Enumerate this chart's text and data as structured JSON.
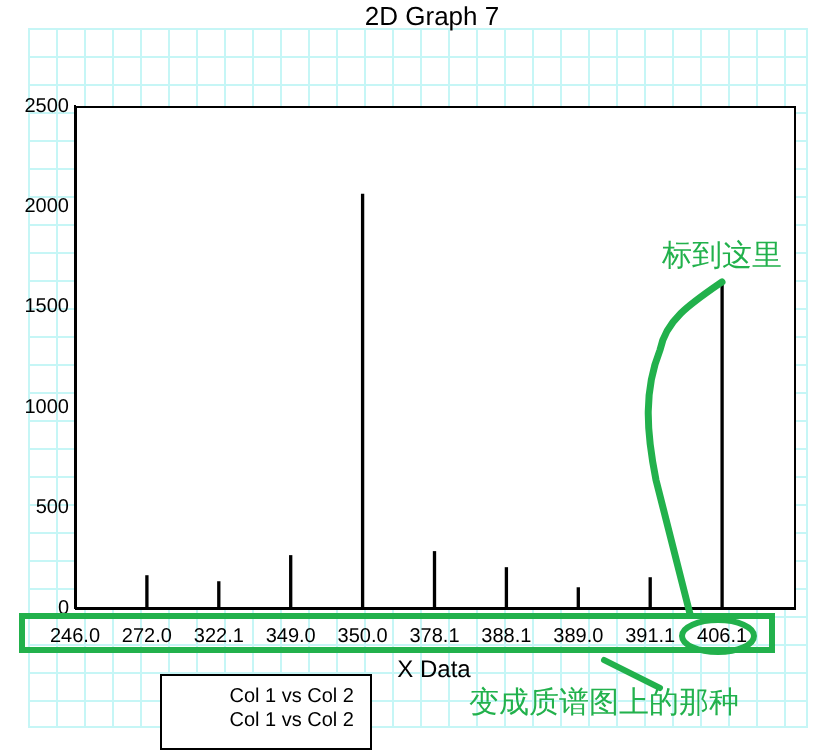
{
  "chart_data": {
    "type": "bar",
    "title": "2D Graph 7",
    "xlabel": "X Data",
    "categories": [
      "246.0",
      "272.0",
      "322.1",
      "349.0",
      "350.0",
      "378.1",
      "388.1",
      "389.0",
      "391.1",
      "406.1"
    ],
    "series": [
      {
        "name": "Col 1 vs Col 2",
        "color": "#000000",
        "values": [
          0,
          160,
          130,
          260,
          2060,
          280,
          200,
          100,
          150,
          1630
        ]
      }
    ],
    "ylim": [
      0,
      2500
    ],
    "yticks": [
      0,
      500,
      1000,
      1500,
      2000,
      2500
    ],
    "grid": false,
    "legend": "bottom",
    "annotations": [
      {
        "text": "标到这里",
        "x": "406.1",
        "y": 1630
      },
      "变成质谱图上的那种",
      "Col 1 vs Col 2"
    ]
  }
}
